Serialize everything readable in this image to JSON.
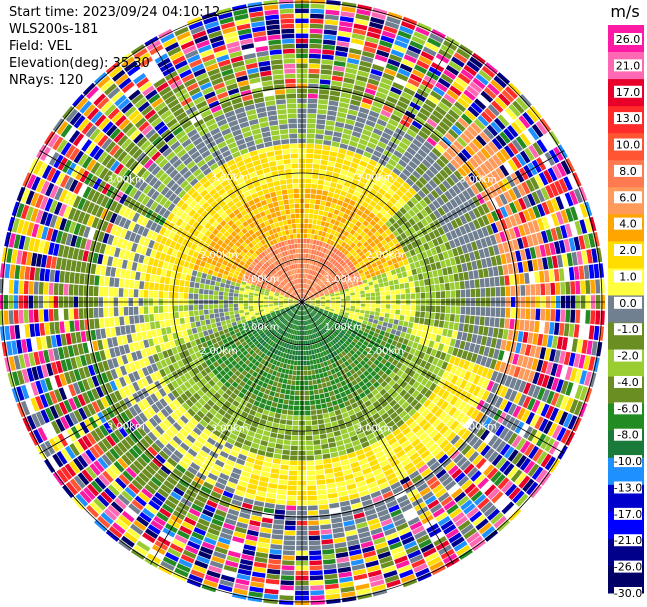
{
  "header": {
    "start_time": "Start time: 2023/09/24 04:10:12",
    "instrument": "WLS200s-181",
    "field": "Field: VEL",
    "elevation": "Elevation(deg): 35.30",
    "nrays": "NRays: 120"
  },
  "colorbar": {
    "unit": "m/s",
    "ticks": [
      "26.0",
      "21.0",
      "17.0",
      "13.0",
      "10.0",
      "8.0",
      "6.0",
      "4.0",
      "2.0",
      "1.0",
      "0.0",
      "-1.0",
      "-2.0",
      "-4.0",
      "-6.0",
      "-8.0",
      "-10.0",
      "-13.0",
      "-17.0",
      "-21.0",
      "-26.0",
      "-30.0"
    ],
    "colors": [
      "#ff1aa6",
      "#ff69b4",
      "#e8002a",
      "#ff2a2a",
      "#ff5533",
      "#ff7a50",
      "#ff9a5a",
      "#ffa500",
      "#ffdd00",
      "#ffff40",
      "#708090",
      "#6b8e23",
      "#9acd32",
      "#6b8e23",
      "#228b22",
      "#1a7a3a",
      "#1e90ff",
      "#0000cd",
      "#0000ff",
      "#00008b",
      "#000066"
    ]
  },
  "chart_data": {
    "type": "heatmap",
    "projection": "polar PPI",
    "field": "VEL",
    "units": "m/s",
    "n_rays": 120,
    "range_rings_km": [
      1.0,
      2.0,
      3.0
    ],
    "range_ring_labels": [
      "1.00km",
      "2.00km",
      "3.00km"
    ],
    "max_range_km": 3.55,
    "color_scale_min": -30.0,
    "color_scale_max": 26.0
  }
}
